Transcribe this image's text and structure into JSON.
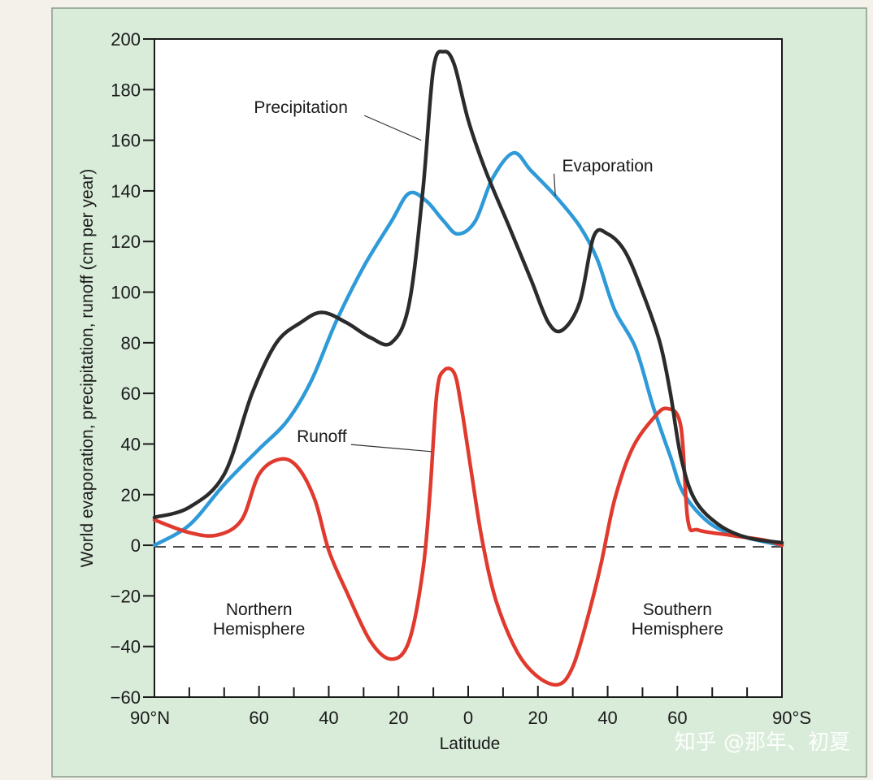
{
  "chart_data": {
    "type": "line",
    "xlabel": "Latitude",
    "ylabel": "World evaporation, precipitation, runoff (cm per year)",
    "ylim": [
      -60,
      200
    ],
    "yticks": [
      -60,
      -40,
      -20,
      0,
      20,
      40,
      60,
      80,
      100,
      120,
      140,
      160,
      180,
      200
    ],
    "xlim": [
      -90,
      90
    ],
    "xticks": [
      {
        "x": -90,
        "label": "90°N"
      },
      {
        "x": -60,
        "label": "60"
      },
      {
        "x": -40,
        "label": "40"
      },
      {
        "x": -20,
        "label": "20"
      },
      {
        "x": 0,
        "label": "0"
      },
      {
        "x": 20,
        "label": "20"
      },
      {
        "x": 40,
        "label": "40"
      },
      {
        "x": 60,
        "label": "60"
      },
      {
        "x": 90,
        "label": "90°S"
      }
    ],
    "minor_ticks_every": 10,
    "zero_line": "dashed",
    "grid": false,
    "background_color": "#d8ecd9",
    "series": [
      {
        "name": "Precipitation",
        "color": "#2b2b2b",
        "points": [
          [
            -90,
            11
          ],
          [
            -80,
            15
          ],
          [
            -70,
            28
          ],
          [
            -62,
            60
          ],
          [
            -55,
            80
          ],
          [
            -48,
            88
          ],
          [
            -42,
            92
          ],
          [
            -35,
            88
          ],
          [
            -28,
            82
          ],
          [
            -22,
            80
          ],
          [
            -17,
            95
          ],
          [
            -13,
            140
          ],
          [
            -10,
            188
          ],
          [
            -7,
            195
          ],
          [
            -4,
            190
          ],
          [
            0,
            168
          ],
          [
            5,
            148
          ],
          [
            12,
            125
          ],
          [
            18,
            105
          ],
          [
            23,
            88
          ],
          [
            27,
            85
          ],
          [
            32,
            96
          ],
          [
            36,
            122
          ],
          [
            40,
            123
          ],
          [
            45,
            116
          ],
          [
            50,
            100
          ],
          [
            55,
            80
          ],
          [
            58,
            60
          ],
          [
            61,
            35
          ],
          [
            65,
            18
          ],
          [
            72,
            8
          ],
          [
            80,
            3
          ],
          [
            90,
            1
          ]
        ]
      },
      {
        "name": "Evaporation",
        "color": "#2e9ad8",
        "points": [
          [
            -90,
            0
          ],
          [
            -80,
            8
          ],
          [
            -70,
            24
          ],
          [
            -60,
            38
          ],
          [
            -52,
            49
          ],
          [
            -45,
            65
          ],
          [
            -38,
            88
          ],
          [
            -30,
            110
          ],
          [
            -22,
            128
          ],
          [
            -17,
            139
          ],
          [
            -12,
            136
          ],
          [
            -7,
            128
          ],
          [
            -3,
            123
          ],
          [
            2,
            128
          ],
          [
            7,
            145
          ],
          [
            13,
            155
          ],
          [
            18,
            148
          ],
          [
            25,
            138
          ],
          [
            32,
            126
          ],
          [
            37,
            113
          ],
          [
            42,
            93
          ],
          [
            48,
            78
          ],
          [
            53,
            55
          ],
          [
            58,
            35
          ],
          [
            62,
            20
          ],
          [
            70,
            8
          ],
          [
            80,
            3
          ],
          [
            90,
            0
          ]
        ]
      },
      {
        "name": "Runoff",
        "color": "#e03a2e",
        "points": [
          [
            -90,
            10
          ],
          [
            -80,
            5
          ],
          [
            -72,
            4
          ],
          [
            -65,
            10
          ],
          [
            -60,
            28
          ],
          [
            -54,
            34
          ],
          [
            -49,
            31
          ],
          [
            -44,
            18
          ],
          [
            -40,
            -2
          ],
          [
            -35,
            -18
          ],
          [
            -28,
            -38
          ],
          [
            -22,
            -45
          ],
          [
            -17,
            -38
          ],
          [
            -13,
            -10
          ],
          [
            -11,
            20
          ],
          [
            -9,
            60
          ],
          [
            -7,
            69
          ],
          [
            -4,
            68
          ],
          [
            -2,
            55
          ],
          [
            1,
            28
          ],
          [
            4,
            2
          ],
          [
            8,
            -22
          ],
          [
            14,
            -42
          ],
          [
            20,
            -52
          ],
          [
            26,
            -55
          ],
          [
            30,
            -48
          ],
          [
            34,
            -30
          ],
          [
            38,
            -8
          ],
          [
            42,
            18
          ],
          [
            47,
            38
          ],
          [
            53,
            50
          ],
          [
            57,
            54
          ],
          [
            61,
            47
          ],
          [
            63,
            10
          ],
          [
            66,
            6
          ],
          [
            75,
            4
          ],
          [
            85,
            2
          ],
          [
            90,
            0
          ]
        ]
      }
    ],
    "annotations": [
      {
        "text": "Precipitation",
        "series": "Precipitation",
        "at": [
          -13.5,
          160
        ],
        "text_at": [
          -48,
          173
        ]
      },
      {
        "text": "Evaporation",
        "series": "Evaporation",
        "at": [
          25,
          138
        ],
        "text_at": [
          40,
          150
        ]
      },
      {
        "text": "Runoff",
        "series": "Runoff",
        "at": [
          -10.5,
          37
        ],
        "text_at": [
          -42,
          43
        ]
      },
      {
        "lines": [
          "Northern",
          "Hemisphere"
        ],
        "at": [
          -60,
          -25
        ]
      },
      {
        "lines": [
          "Southern",
          "Hemisphere"
        ],
        "at": [
          60,
          -25
        ]
      }
    ]
  },
  "watermark": "知乎 @那年、初夏"
}
